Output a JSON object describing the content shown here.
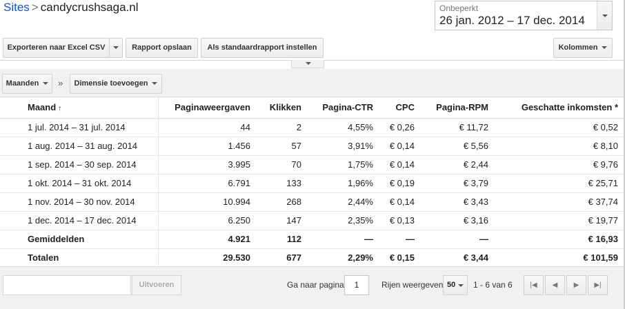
{
  "breadcrumb": {
    "root": "Sites",
    "separator": ">",
    "current": "candycrushsaga.nl"
  },
  "date_range": {
    "label": "Onbeperkt",
    "value": "26 jan. 2012 – 17 dec. 2014"
  },
  "toolbar": {
    "export_label": "Exporteren naar Excel CSV",
    "save_report_label": "Rapport opslaan",
    "set_default_label": "Als standaardrapport instellen",
    "columns_label": "Kolommen"
  },
  "dimensions": {
    "months_label": "Maanden",
    "separator": "»",
    "add_dimension_label": "Dimensie toevoegen"
  },
  "table": {
    "headers": [
      "Maand",
      "Paginaweergaven",
      "Klikken",
      "Pagina-CTR",
      "CPC",
      "Pagina-RPM",
      "Geschatte inkomsten *"
    ],
    "sort_indicator": "↑",
    "rows": [
      [
        "1 jul. 2014 – 31 jul. 2014",
        "44",
        "2",
        "4,55%",
        "€ 0,26",
        "€ 11,72",
        "€ 0,52"
      ],
      [
        "1 aug. 2014 – 31 aug. 2014",
        "1.456",
        "57",
        "3,91%",
        "€ 0,14",
        "€ 5,56",
        "€ 8,10"
      ],
      [
        "1 sep. 2014 – 30 sep. 2014",
        "3.995",
        "70",
        "1,75%",
        "€ 0,14",
        "€ 2,44",
        "€ 9,76"
      ],
      [
        "1 okt. 2014 – 31 okt. 2014",
        "6.791",
        "133",
        "1,96%",
        "€ 0,19",
        "€ 3,79",
        "€ 25,71"
      ],
      [
        "1 nov. 2014 – 30 nov. 2014",
        "10.994",
        "268",
        "2,44%",
        "€ 0,14",
        "€ 3,43",
        "€ 37,74"
      ],
      [
        "1 dec. 2014 – 17 dec. 2014",
        "6.250",
        "147",
        "2,35%",
        "€ 0,13",
        "€ 3,16",
        "€ 19,77"
      ]
    ],
    "averages": [
      "Gemiddelden",
      "4.921",
      "112",
      "—",
      "—",
      "—",
      "€ 16,93"
    ],
    "totals": [
      "Totalen",
      "29.530",
      "677",
      "2,29%",
      "€ 0,15",
      "€ 3,44",
      "€ 101,59"
    ]
  },
  "footer": {
    "filter_value": "",
    "run_label": "Uitvoeren",
    "goto_label": "Ga naar pagina:",
    "page_value": "1",
    "rows_label": "Rijen weergeven:",
    "rows_value": "50",
    "range_text": "1 - 6 van 6"
  }
}
